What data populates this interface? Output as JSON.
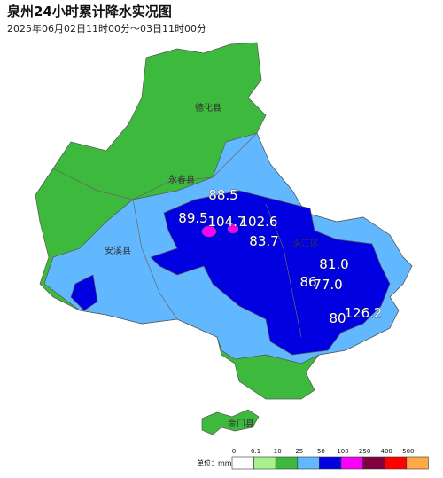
{
  "header": {
    "title": "泉州24小时累计降水实况图",
    "subtitle": "2025年06月02日11时00分～03日11时00分"
  },
  "map": {
    "place_labels": [
      "德化县",
      "永春县",
      "安溪县",
      "洛江区",
      "金门县"
    ],
    "rainfall_labels": [
      "88.5",
      "89.5",
      "104.7",
      "102.6",
      "83.7",
      "81.0",
      "86",
      "77.0",
      "80",
      "126.2"
    ]
  },
  "legend": {
    "unit": "单位：mm",
    "thresholds": [
      0,
      0.1,
      10,
      25,
      50,
      100,
      250,
      400,
      500
    ],
    "colors": [
      "#ffffff",
      "#a6f28f",
      "#3dba3d",
      "#61b8ff",
      "#0000e1",
      "#fa00fa",
      "#800040",
      "#ff0000",
      "#ffaa44"
    ]
  }
}
